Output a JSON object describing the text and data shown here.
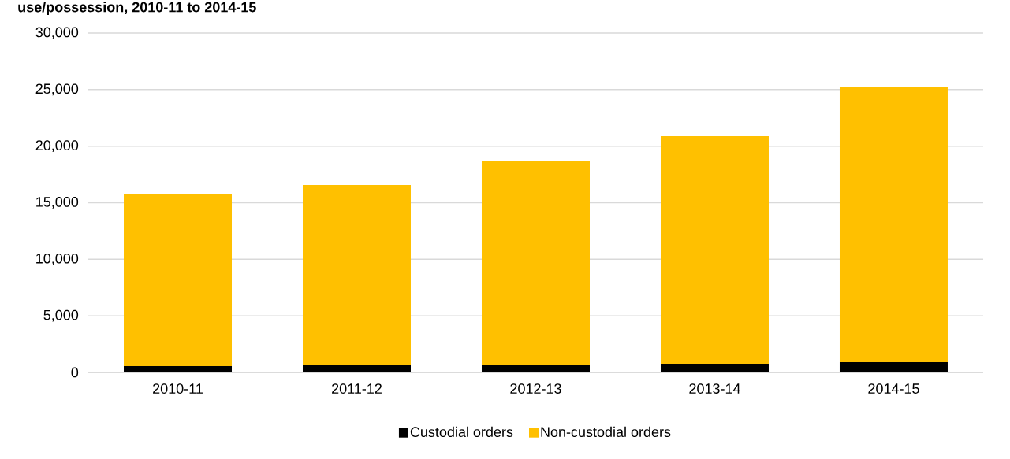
{
  "chart_data": {
    "type": "bar",
    "title": "use/possession, 2010-11 to 2014-15",
    "stacked": true,
    "categories": [
      "2010-11",
      "2011-12",
      "2012-13",
      "2013-14",
      "2014-15"
    ],
    "series": [
      {
        "name": "Custodial orders",
        "color": "#000000",
        "values": [
          560,
          630,
          700,
          770,
          900
        ]
      },
      {
        "name": "Non-custodial orders",
        "color": "#ffc000",
        "values": [
          15170,
          15930,
          17950,
          20110,
          24290
        ]
      }
    ],
    "ylim": [
      0,
      30000
    ],
    "yticks": [
      0,
      {
        "value": 5000,
        "label": "5,000"
      },
      {
        "value": 10000,
        "label": "10,000"
      },
      {
        "value": 15000,
        "label": "15,000"
      },
      {
        "value": 20000,
        "label": "20,000"
      },
      {
        "value": 25000,
        "label": "25,000"
      },
      {
        "value": 30000,
        "label": "30,000"
      }
    ],
    "grid": "y",
    "legend": "bottom"
  }
}
